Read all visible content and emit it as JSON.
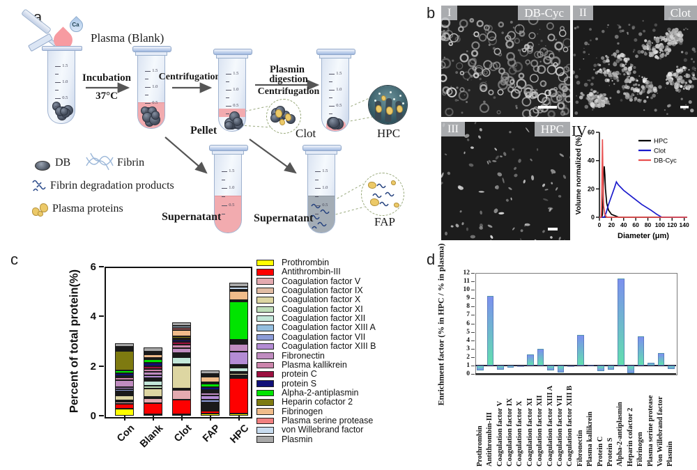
{
  "panel_a": {
    "label": "a",
    "plasma_label": "Plasma (Blank)",
    "ca_label": "Ca",
    "step1_label": "Incubation",
    "step1_sub": "37°C",
    "step2_label": "Centrifugation",
    "step3_line1": "Plasmin",
    "step3_line2": "digestion",
    "step3_line3": "Centrifugation",
    "pellet_label": "Pellet",
    "clot_label": "Clot",
    "hpc_label": "HPC",
    "supernatant1_label": "Supernatant",
    "supernatant2_label": "Supernatant",
    "fap_label": "FAP",
    "tube_ticks": [
      "1.5",
      "1.0",
      "0.5"
    ],
    "legend": [
      {
        "icon": "db-icon",
        "label": "DB"
      },
      {
        "icon": "fibrin-icon",
        "label": "Fibrin"
      },
      {
        "icon": "fdp-icon",
        "label": "Fibrin degradation products"
      },
      {
        "icon": "plasma-proteins-icon",
        "label": "Plasma proteins"
      }
    ]
  },
  "panel_b": {
    "label": "b",
    "images": [
      {
        "numeral": "I",
        "tag": "DB-Cyc"
      },
      {
        "numeral": "II",
        "tag": "Clot"
      },
      {
        "numeral": "III",
        "tag": "HPC"
      }
    ],
    "chart_numeral": "IV"
  },
  "panel_c": {
    "label": "c"
  },
  "panel_d": {
    "label": "d"
  },
  "chart_data": [
    {
      "id": "size_distribution",
      "type": "line",
      "xlabel": "Diameter (μm)",
      "ylabel": "Volume normalized (%)",
      "xlim": [
        0,
        145
      ],
      "ylim": [
        0,
        60
      ],
      "xticks": [
        0,
        20,
        40,
        60,
        80,
        100,
        120,
        140
      ],
      "yticks": [
        0,
        20,
        40,
        60
      ],
      "legend_position": "top-right",
      "grid": false,
      "series": [
        {
          "name": "HPC",
          "color": "#000000",
          "points": [
            [
              0,
              0
            ],
            [
              4,
              0
            ],
            [
              5,
              2
            ],
            [
              6,
              14
            ],
            [
              7,
              30
            ],
            [
              8,
              36
            ],
            [
              9,
              30
            ],
            [
              10,
              20
            ],
            [
              12,
              10
            ],
            [
              15,
              5
            ],
            [
              20,
              2
            ],
            [
              26,
              1
            ],
            [
              32,
              0
            ],
            [
              145,
              0
            ]
          ]
        },
        {
          "name": "Clot",
          "color": "#1b1bcc",
          "points": [
            [
              0,
              0
            ],
            [
              8,
              0
            ],
            [
              11,
              3
            ],
            [
              15,
              9
            ],
            [
              20,
              15
            ],
            [
              25,
              21
            ],
            [
              28,
              25
            ],
            [
              31,
              23
            ],
            [
              40,
              19
            ],
            [
              55,
              14
            ],
            [
              70,
              9
            ],
            [
              85,
              5
            ],
            [
              95,
              2
            ],
            [
              103,
              0
            ],
            [
              145,
              0
            ]
          ]
        },
        {
          "name": "DB-Cyc",
          "color": "#e85050",
          "points": [
            [
              0,
              0
            ],
            [
              3,
              0
            ],
            [
              4,
              18
            ],
            [
              5,
              55
            ],
            [
              6,
              25
            ],
            [
              7,
              8
            ],
            [
              9,
              2
            ],
            [
              12,
              0
            ],
            [
              145,
              0
            ]
          ]
        }
      ]
    },
    {
      "id": "protein_composition",
      "type": "bar",
      "stacked": true,
      "ylabel": "Percent of total protein(%)",
      "ylim": [
        0,
        6
      ],
      "yticks": [
        0,
        2,
        4,
        6
      ],
      "grid": false,
      "legend_position": "right",
      "categories": [
        "Con",
        "Blank",
        "Clot",
        "FAP",
        "HPC"
      ],
      "series": [
        {
          "name": "Prothrombin",
          "color": "#ffff00",
          "values": [
            0.28,
            0.05,
            0.05,
            0.1,
            0.1
          ]
        },
        {
          "name": "Antithrombin-III",
          "color": "#fe0000",
          "values": [
            0.2,
            0.45,
            0.6,
            0.12,
            1.5
          ]
        },
        {
          "name": "Coagulation factor V",
          "color": "#e4aab0",
          "values": [
            0.08,
            0.2,
            0.4,
            0.03,
            0.02
          ]
        },
        {
          "name": "Coagulation factor IX",
          "color": "#e2bda4",
          "values": [
            0.05,
            0.05,
            0.03,
            0.02,
            0.02
          ]
        },
        {
          "name": "Coagulation factor X",
          "color": "#ddd6a2",
          "values": [
            0.2,
            0.35,
            0.95,
            0.03,
            0.1
          ]
        },
        {
          "name": "Coagulation factor XI",
          "color": "#bfdfba",
          "values": [
            0.05,
            0.1,
            0.05,
            0.02,
            0.05
          ]
        },
        {
          "name": "Coagulation factor XII",
          "color": "#c3e8da",
          "values": [
            0.05,
            0.2,
            0.28,
            0.03,
            0.18
          ]
        },
        {
          "name": "Coagulation factor XIII A",
          "color": "#94bede",
          "values": [
            0.07,
            0.07,
            0.05,
            0.05,
            0.03
          ]
        },
        {
          "name": "Coagulation factor VII",
          "color": "#8c9cd8",
          "values": [
            0.07,
            0.05,
            0.03,
            0.12,
            0.02
          ]
        },
        {
          "name": "Coagulation factor XIII B",
          "color": "#b48cd4",
          "values": [
            0.1,
            0.1,
            0.08,
            0.22,
            0.55
          ]
        },
        {
          "name": "Fibronectin",
          "color": "#c08cc0",
          "values": [
            0.3,
            0.15,
            0.2,
            0.12,
            0.33
          ]
        },
        {
          "name": "Plasma kallikrein",
          "color": "#cc85ac",
          "values": [
            0.1,
            0.12,
            0.12,
            0.06,
            0.03
          ]
        },
        {
          "name": "protein C",
          "color": "#9c1040",
          "values": [
            0.05,
            0.1,
            0.12,
            0.05,
            0.02
          ]
        },
        {
          "name": "protein S",
          "color": "#101078",
          "values": [
            0.12,
            0.15,
            0.1,
            0.14,
            0.02
          ]
        },
        {
          "name": "Alpha-2-antiplasmin",
          "color": "#00e400",
          "values": [
            0.12,
            0.12,
            0.05,
            0.15,
            1.65
          ]
        },
        {
          "name": "Heparin cofactor 2",
          "color": "#7e7a10",
          "values": [
            0.8,
            0.08,
            0.08,
            0.04,
            0.03
          ]
        },
        {
          "name": "Fibrinogen",
          "color": "#f0bc8a",
          "values": [
            0.05,
            0.12,
            0.25,
            0.28,
            0.38
          ]
        },
        {
          "name": "Plasma serine protease",
          "color": "#f08080",
          "values": [
            0.04,
            0.05,
            0.08,
            0.03,
            0.03
          ]
        },
        {
          "name": "von Willebrand factor",
          "color": "#c8dcf0",
          "values": [
            0.05,
            0.08,
            0.08,
            0.04,
            0.12
          ]
        },
        {
          "name": "Plasmin",
          "color": "#a8a8a8",
          "values": [
            0.15,
            0.15,
            0.15,
            0.17,
            0.16
          ]
        }
      ]
    },
    {
      "id": "enrichment_factor",
      "type": "bar",
      "ylabel": "Enrichment factor (% in HPC / % in plasma)",
      "ylim": [
        0,
        12
      ],
      "yticks": [
        0,
        1,
        2,
        3,
        4,
        5,
        6,
        7,
        8,
        9,
        10,
        11,
        12
      ],
      "baseline": 1,
      "grid": false,
      "bar_gradient": [
        "#62dfae",
        "#7c90ee"
      ],
      "categories": [
        "Prothrombin",
        "Antithrombin-III",
        "Coagulation factor V",
        "Coagulation factor IX",
        "Coagulation factor X",
        "Coagulation factor XI",
        "Coagulation factor XII",
        "Coagulation factor XIII A",
        "Coagulation factor VII",
        "Coagulation factor XIII B",
        "Fibronectin",
        "Plasma kallikrein",
        "Protein C",
        "Protein S",
        "Alpha-2-antiplasmin",
        "Heparin cofactor 2",
        "Fibrinogen",
        "Plasma serine protease",
        "Von Willebrand factor",
        "Plasmin"
      ],
      "values": [
        0.45,
        9.3,
        0.5,
        0.75,
        0.9,
        2.3,
        3.0,
        0.4,
        0.2,
        0.85,
        4.6,
        1.1,
        0.3,
        0.5,
        11.3,
        0.1,
        4.5,
        1.3,
        2.45,
        0.55
      ]
    }
  ]
}
